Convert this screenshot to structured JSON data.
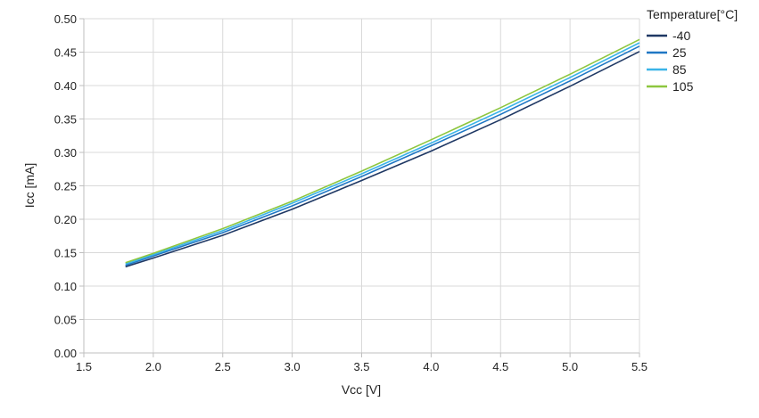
{
  "chart_data": {
    "type": "line",
    "title": "",
    "xlabel": "Vcc [V]",
    "ylabel": "Icc [mA]",
    "xlim": [
      1.5,
      5.5
    ],
    "ylim": [
      0,
      0.5
    ],
    "x_ticks": [
      1.5,
      2.0,
      2.5,
      3.0,
      3.5,
      4.0,
      4.5,
      5.0,
      5.5
    ],
    "x_tick_labels": [
      "1.5",
      "2.0",
      "2.5",
      "3.0",
      "3.5",
      "4.0",
      "4.5",
      "5.0",
      "5.5"
    ],
    "y_ticks": [
      0,
      0.05,
      0.1,
      0.15,
      0.2,
      0.25,
      0.3,
      0.35,
      0.4,
      0.45,
      0.5
    ],
    "y_tick_labels": [
      "0.00",
      "0.05",
      "0.10",
      "0.15",
      "0.20",
      "0.25",
      "0.30",
      "0.35",
      "0.40",
      "0.45",
      "0.50"
    ],
    "grid": true,
    "legend_title": "Temperature[°C]",
    "legend_position": "top-right",
    "x": [
      1.8,
      2.0,
      2.5,
      3.0,
      3.5,
      4.0,
      4.5,
      5.0,
      5.5
    ],
    "series": [
      {
        "name": "-40",
        "color": "#1f3864",
        "values": [
          0.129,
          0.142,
          0.176,
          0.215,
          0.258,
          0.302,
          0.349,
          0.399,
          0.451
        ]
      },
      {
        "name": "25",
        "color": "#1f77c4",
        "values": [
          0.131,
          0.145,
          0.18,
          0.22,
          0.264,
          0.31,
          0.357,
          0.407,
          0.459
        ]
      },
      {
        "name": "85",
        "color": "#3ab4e8",
        "values": [
          0.133,
          0.147,
          0.183,
          0.224,
          0.268,
          0.314,
          0.362,
          0.412,
          0.464
        ]
      },
      {
        "name": "105",
        "color": "#8dc63f",
        "values": [
          0.135,
          0.149,
          0.186,
          0.227,
          0.272,
          0.319,
          0.367,
          0.417,
          0.469
        ]
      }
    ]
  }
}
